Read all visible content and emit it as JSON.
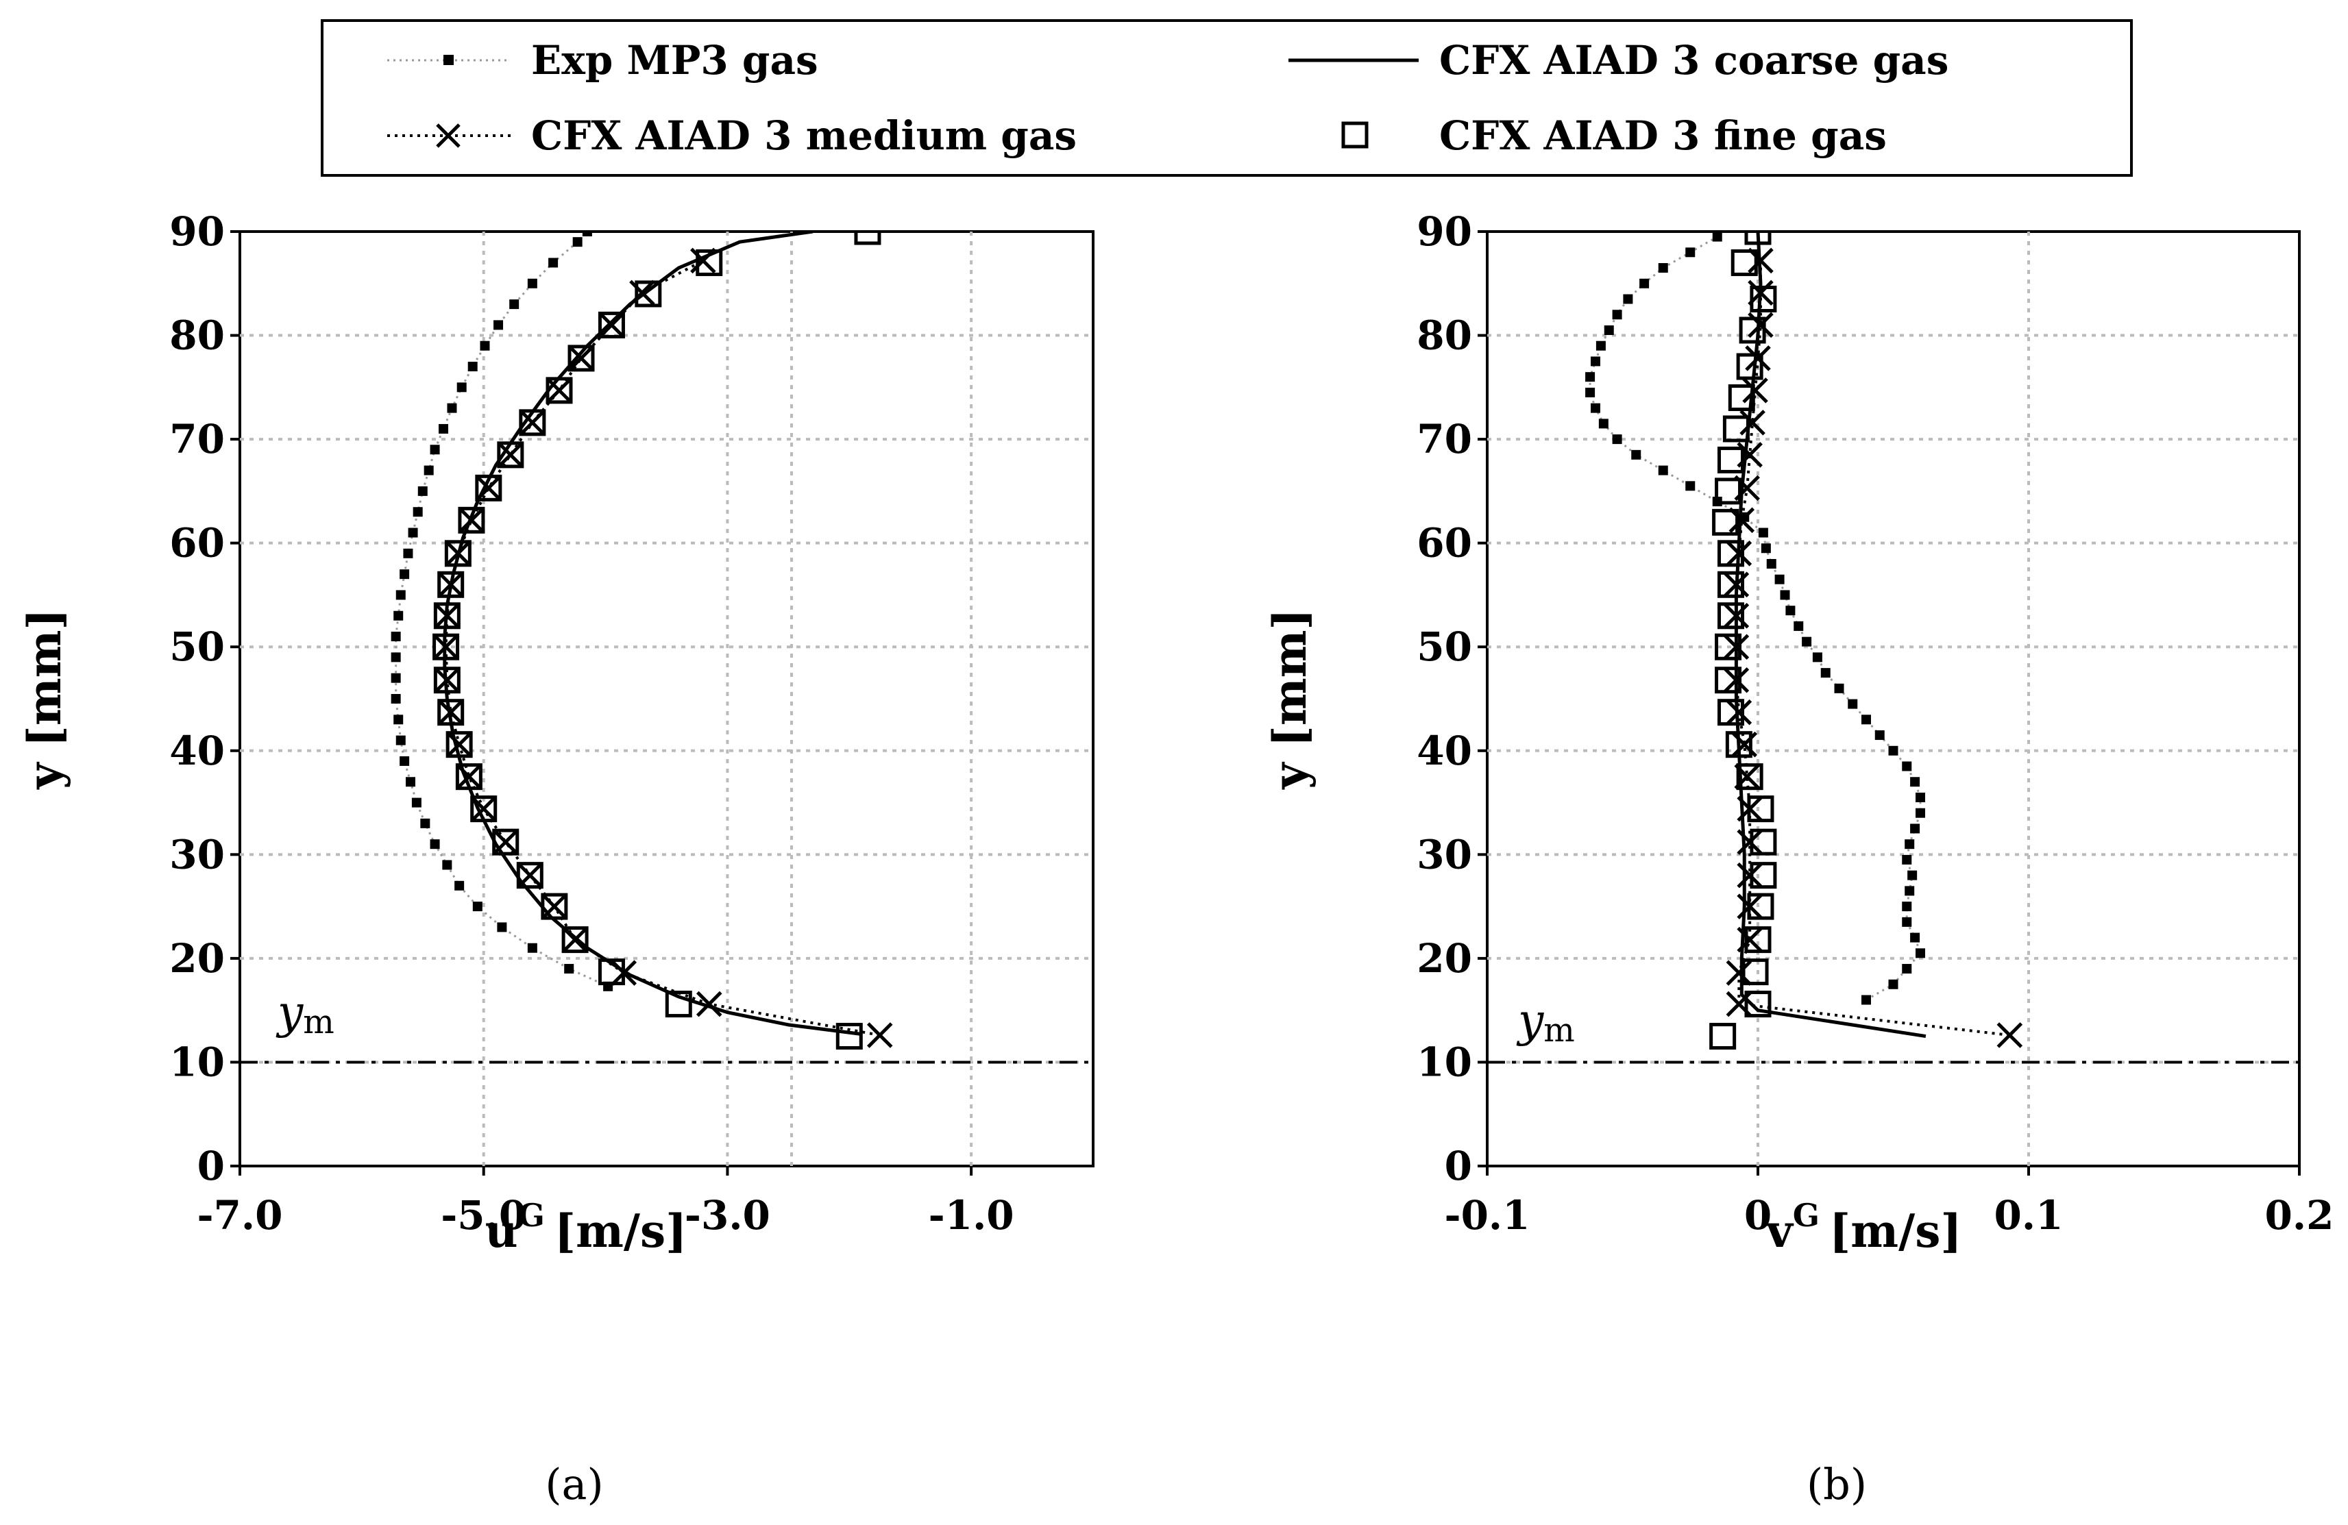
{
  "legend": {
    "exp": "Exp MP3 gas",
    "coarse": "CFX AIAD 3 coarse gas",
    "medium": "CFX AIAD 3 medium gas",
    "fine": "CFX AIAD 3 fine gas"
  },
  "chart_data": [
    {
      "id": "a",
      "type": "line",
      "caption": "(a)",
      "xlabel_main": "u",
      "xlabel_sup": "G",
      "xlabel_unit": "[m/s]",
      "ylabel": "y [mm]",
      "xlim": [
        -7.0,
        0.0
      ],
      "ylim": [
        0,
        90
      ],
      "xticks": [
        -7.0,
        -5.0,
        -3.0,
        -1.0
      ],
      "xtick_labels": [
        "-7.0",
        "-5.0",
        "-3.0",
        "-1.0"
      ],
      "yticks": [
        0,
        10,
        20,
        30,
        40,
        50,
        60,
        70,
        80,
        90
      ],
      "ym_label": "y",
      "ym_sub": "m",
      "ym_value": 10,
      "series": [
        {
          "name": "Exp MP3 gas",
          "points": [
            [
              -3.98,
              17.3
            ],
            [
              -4.3,
              19
            ],
            [
              -4.6,
              21
            ],
            [
              -4.85,
              23
            ],
            [
              -5.05,
              25
            ],
            [
              -5.2,
              27
            ],
            [
              -5.3,
              29
            ],
            [
              -5.4,
              31
            ],
            [
              -5.48,
              33
            ],
            [
              -5.55,
              35
            ],
            [
              -5.6,
              37
            ],
            [
              -5.65,
              39
            ],
            [
              -5.68,
              41
            ],
            [
              -5.7,
              43
            ],
            [
              -5.72,
              45
            ],
            [
              -5.72,
              47
            ],
            [
              -5.72,
              49
            ],
            [
              -5.72,
              51
            ],
            [
              -5.7,
              53
            ],
            [
              -5.68,
              55
            ],
            [
              -5.65,
              57
            ],
            [
              -5.62,
              59
            ],
            [
              -5.58,
              61
            ],
            [
              -5.54,
              63
            ],
            [
              -5.5,
              65
            ],
            [
              -5.45,
              67
            ],
            [
              -5.4,
              69
            ],
            [
              -5.33,
              71
            ],
            [
              -5.26,
              73
            ],
            [
              -5.18,
              75
            ],
            [
              -5.09,
              77
            ],
            [
              -4.99,
              79
            ],
            [
              -4.88,
              81
            ],
            [
              -4.75,
              83
            ],
            [
              -4.6,
              85
            ],
            [
              -4.43,
              87
            ],
            [
              -4.23,
              89
            ],
            [
              -4.15,
              90
            ]
          ]
        },
        {
          "name": "CFX AIAD 3 coarse gas",
          "points": [
            [
              -1.9,
              12.7
            ],
            [
              -2.5,
              13.6
            ],
            [
              -3.0,
              14.8
            ],
            [
              -3.4,
              16.3
            ],
            [
              -3.8,
              18.4
            ],
            [
              -4.15,
              21
            ],
            [
              -4.45,
              24
            ],
            [
              -4.7,
              27.5
            ],
            [
              -4.9,
              31
            ],
            [
              -5.05,
              34.5
            ],
            [
              -5.17,
              38
            ],
            [
              -5.25,
              41.5
            ],
            [
              -5.3,
              45
            ],
            [
              -5.32,
              48
            ],
            [
              -5.32,
              51
            ],
            [
              -5.3,
              54
            ],
            [
              -5.25,
              57
            ],
            [
              -5.17,
              60.5
            ],
            [
              -5.05,
              64
            ],
            [
              -4.9,
              67.5
            ],
            [
              -4.7,
              71
            ],
            [
              -4.45,
              75
            ],
            [
              -4.15,
              79
            ],
            [
              -3.8,
              83
            ],
            [
              -3.4,
              86.5
            ],
            [
              -2.9,
              89
            ],
            [
              -2.3,
              90
            ]
          ]
        },
        {
          "name": "CFX AIAD 3 medium gas",
          "points": [
            [
              -1.75,
              12.6
            ],
            [
              -3.15,
              15.6
            ],
            [
              -3.85,
              18.6
            ],
            [
              -4.25,
              21.8
            ],
            [
              -4.42,
              25
            ],
            [
              -4.62,
              28
            ],
            [
              -4.82,
              31.2
            ],
            [
              -5.0,
              34.4
            ],
            [
              -5.12,
              37.5
            ],
            [
              -5.2,
              40.6
            ],
            [
              -5.27,
              43.7
            ],
            [
              -5.3,
              46.8
            ],
            [
              -5.31,
              50
            ],
            [
              -5.3,
              53
            ],
            [
              -5.27,
              56
            ],
            [
              -5.21,
              59
            ],
            [
              -5.1,
              62.2
            ],
            [
              -4.96,
              65.3
            ],
            [
              -4.78,
              68.5
            ],
            [
              -4.6,
              71.6
            ],
            [
              -4.38,
              74.7
            ],
            [
              -4.2,
              77.8
            ],
            [
              -3.95,
              81
            ],
            [
              -3.7,
              84.1
            ],
            [
              -3.2,
              87.2
            ]
          ]
        },
        {
          "name": "CFX AIAD 3 fine gas",
          "points": [
            [
              -2.0,
              12.5
            ],
            [
              -3.4,
              15.6
            ],
            [
              -3.95,
              18.7
            ],
            [
              -4.25,
              21.8
            ],
            [
              -4.42,
              25
            ],
            [
              -4.62,
              28
            ],
            [
              -4.82,
              31.2
            ],
            [
              -5.0,
              34.4
            ],
            [
              -5.12,
              37.5
            ],
            [
              -5.2,
              40.6
            ],
            [
              -5.27,
              43.7
            ],
            [
              -5.3,
              46.8
            ],
            [
              -5.31,
              50
            ],
            [
              -5.3,
              53
            ],
            [
              -5.27,
              56
            ],
            [
              -5.21,
              59
            ],
            [
              -5.1,
              62.2
            ],
            [
              -4.96,
              65.3
            ],
            [
              -4.78,
              68.5
            ],
            [
              -4.6,
              71.6
            ],
            [
              -4.38,
              74.7
            ],
            [
              -4.2,
              77.8
            ],
            [
              -3.95,
              81
            ],
            [
              -3.65,
              84
            ],
            [
              -3.15,
              87
            ],
            [
              -1.85,
              90
            ]
          ]
        }
      ]
    },
    {
      "id": "b",
      "type": "line",
      "caption": "(b)",
      "xlabel_main": "v",
      "xlabel_sup": "G",
      "xlabel_unit": "[m/s]",
      "ylabel": "y [mm]",
      "xlim": [
        -0.1,
        0.2
      ],
      "ylim": [
        0,
        90
      ],
      "xticks": [
        -0.1,
        0,
        0.1,
        0.2
      ],
      "xtick_labels": [
        "-0.1",
        "0",
        "0.1",
        "0.2"
      ],
      "yticks": [
        0,
        10,
        20,
        30,
        40,
        50,
        60,
        70,
        80,
        90
      ],
      "ym_label": "y",
      "ym_sub": "m",
      "ym_value": 10,
      "series": [
        {
          "name": "Exp MP3 gas",
          "points": [
            [
              0.04,
              16
            ],
            [
              0.05,
              17.5
            ],
            [
              0.055,
              19
            ],
            [
              0.06,
              20.5
            ],
            [
              0.058,
              22
            ],
            [
              0.055,
              23.5
            ],
            [
              0.055,
              25
            ],
            [
              0.056,
              26.5
            ],
            [
              0.057,
              28
            ],
            [
              0.055,
              29.5
            ],
            [
              0.056,
              31
            ],
            [
              0.058,
              32.5
            ],
            [
              0.06,
              34
            ],
            [
              0.06,
              35.5
            ],
            [
              0.058,
              37
            ],
            [
              0.055,
              38.5
            ],
            [
              0.05,
              40
            ],
            [
              0.045,
              41.5
            ],
            [
              0.04,
              43
            ],
            [
              0.035,
              44.5
            ],
            [
              0.03,
              46
            ],
            [
              0.025,
              47.5
            ],
            [
              0.022,
              49
            ],
            [
              0.018,
              50.5
            ],
            [
              0.015,
              52
            ],
            [
              0.012,
              53.5
            ],
            [
              0.01,
              55
            ],
            [
              0.008,
              56.5
            ],
            [
              0.005,
              58
            ],
            [
              0.003,
              59.5
            ],
            [
              0.002,
              61
            ],
            [
              -0.005,
              62.5
            ],
            [
              -0.015,
              64
            ],
            [
              -0.025,
              65.5
            ],
            [
              -0.035,
              67
            ],
            [
              -0.045,
              68.5
            ],
            [
              -0.052,
              70
            ],
            [
              -0.057,
              71.5
            ],
            [
              -0.06,
              73
            ],
            [
              -0.062,
              74.5
            ],
            [
              -0.062,
              76
            ],
            [
              -0.06,
              77.5
            ],
            [
              -0.058,
              79
            ],
            [
              -0.055,
              80.5
            ],
            [
              -0.052,
              82
            ],
            [
              -0.048,
              83.5
            ],
            [
              -0.042,
              85
            ],
            [
              -0.035,
              86.5
            ],
            [
              -0.025,
              88
            ],
            [
              -0.015,
              89.5
            ]
          ]
        },
        {
          "name": "CFX AIAD 3 coarse gas",
          "points": [
            [
              0.062,
              12.5
            ],
            [
              0.0,
              15
            ],
            [
              -0.006,
              16.5
            ],
            [
              -0.006,
              20
            ],
            [
              -0.005,
              25
            ],
            [
              -0.005,
              30
            ],
            [
              -0.006,
              35
            ],
            [
              -0.007,
              40
            ],
            [
              -0.008,
              45
            ],
            [
              -0.008,
              50
            ],
            [
              -0.008,
              55
            ],
            [
              -0.007,
              60
            ],
            [
              -0.006,
              65
            ],
            [
              -0.004,
              70
            ],
            [
              -0.002,
              75
            ],
            [
              0.0,
              80
            ],
            [
              0.001,
              85
            ],
            [
              0.0,
              90
            ]
          ]
        },
        {
          "name": "CFX AIAD 3 medium gas",
          "points": [
            [
              0.093,
              12.6
            ],
            [
              -0.007,
              15.6
            ],
            [
              -0.007,
              18.6
            ],
            [
              -0.003,
              21.8
            ],
            [
              -0.003,
              25
            ],
            [
              -0.003,
              28
            ],
            [
              -0.003,
              31.2
            ],
            [
              -0.003,
              34.4
            ],
            [
              -0.004,
              37.5
            ],
            [
              -0.005,
              40.6
            ],
            [
              -0.007,
              43.7
            ],
            [
              -0.008,
              46.8
            ],
            [
              -0.008,
              50
            ],
            [
              -0.008,
              53
            ],
            [
              -0.008,
              56
            ],
            [
              -0.007,
              59
            ],
            [
              -0.006,
              62.2
            ],
            [
              -0.004,
              65.3
            ],
            [
              -0.003,
              68.5
            ],
            [
              -0.002,
              71.6
            ],
            [
              -0.001,
              74.7
            ],
            [
              0.0,
              77.8
            ],
            [
              0.001,
              81
            ],
            [
              0.001,
              84.1
            ],
            [
              0.001,
              87.2
            ]
          ]
        },
        {
          "name": "CFX AIAD 3 fine gas",
          "points": [
            [
              -0.013,
              12.5
            ],
            [
              0.0,
              15.6
            ],
            [
              -0.001,
              18.7
            ],
            [
              0.0,
              21.8
            ],
            [
              0.001,
              25
            ],
            [
              0.002,
              28
            ],
            [
              0.002,
              31.2
            ],
            [
              0.001,
              34.4
            ],
            [
              -0.003,
              37.5
            ],
            [
              -0.007,
              40.6
            ],
            [
              -0.01,
              43.7
            ],
            [
              -0.011,
              46.8
            ],
            [
              -0.011,
              50
            ],
            [
              -0.01,
              53
            ],
            [
              -0.01,
              56
            ],
            [
              -0.01,
              59
            ],
            [
              -0.012,
              62
            ],
            [
              -0.011,
              65
            ],
            [
              -0.01,
              68
            ],
            [
              -0.008,
              71
            ],
            [
              -0.006,
              74
            ],
            [
              -0.003,
              77
            ],
            [
              -0.002,
              80.5
            ],
            [
              0.002,
              83.5
            ],
            [
              -0.005,
              87
            ],
            [
              0.0,
              90
            ]
          ]
        }
      ]
    }
  ]
}
